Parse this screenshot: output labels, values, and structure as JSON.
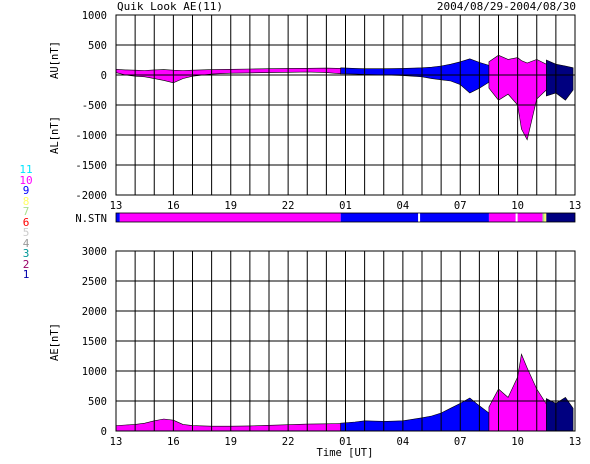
{
  "header": {
    "title": "Quik Look AE(11)",
    "date_range": "2004/08/29-2004/08/30"
  },
  "station_legend": {
    "items": [
      {
        "label": "11",
        "color": "#00e5ff"
      },
      {
        "label": "10",
        "color": "#ff00ff"
      },
      {
        "label": "9",
        "color": "#0000ff"
      },
      {
        "label": "8",
        "color": "#ffff66"
      },
      {
        "label": "7",
        "color": "#a6e08c"
      },
      {
        "label": "6",
        "color": "#ff0000"
      },
      {
        "label": "5",
        "color": "#cccccc"
      },
      {
        "label": "4",
        "color": "#999999"
      },
      {
        "label": "3",
        "color": "#009999"
      },
      {
        "label": "2",
        "color": "#990066"
      },
      {
        "label": "1",
        "color": "#0000aa"
      }
    ]
  },
  "chart_data": [
    {
      "type": "area",
      "panel": "upper",
      "ylabel_top": "AU[nT]",
      "ylabel_bottom": "AL[nT]",
      "ylim": [
        -2000,
        1000
      ],
      "yticks": [
        1000,
        500,
        0,
        -500,
        -1000,
        -1500,
        -2000
      ],
      "x_ticklabels": [
        "13",
        "16",
        "19",
        "22",
        "01",
        "04",
        "07",
        "10",
        "13"
      ],
      "x_tick_hours": [
        0,
        3,
        6,
        9,
        12,
        15,
        18,
        21,
        24
      ],
      "grid": true,
      "series": [
        {
          "color_key": "magenta",
          "x_hours": [
            0,
            0.5,
            1,
            1.5,
            2,
            2.5,
            3,
            3.5,
            4,
            5,
            6,
            7,
            8,
            9,
            10,
            11,
            11.75
          ],
          "au": [
            95,
            85,
            80,
            75,
            85,
            90,
            80,
            75,
            80,
            90,
            95,
            100,
            105,
            110,
            112,
            115,
            110
          ],
          "al": [
            40,
            0,
            -20,
            -30,
            -60,
            -90,
            -130,
            -60,
            -20,
            15,
            30,
            35,
            40,
            45,
            50,
            40,
            20
          ]
        },
        {
          "color_key": "blue",
          "x_hours": [
            11.75,
            12.5,
            13,
            14,
            15,
            16,
            16.5,
            17,
            17.5,
            18,
            18.5,
            19,
            19.5
          ],
          "au": [
            120,
            110,
            105,
            105,
            110,
            120,
            130,
            150,
            180,
            220,
            270,
            210,
            160
          ],
          "al": [
            20,
            15,
            10,
            0,
            -10,
            -30,
            -60,
            -80,
            -100,
            -160,
            -300,
            -220,
            -120
          ]
        },
        {
          "color_key": "magenta",
          "x_hours": [
            19.5,
            20,
            20.5,
            21,
            21.2,
            21.5,
            22,
            22.5
          ],
          "au": [
            220,
            330,
            260,
            290,
            240,
            200,
            260,
            180
          ],
          "al": [
            -220,
            -420,
            -320,
            -500,
            -900,
            -1080,
            -400,
            -250
          ]
        },
        {
          "color_key": "navy",
          "x_hours": [
            22.5,
            23,
            23.5,
            23.9
          ],
          "au": [
            250,
            180,
            150,
            120
          ],
          "al": [
            -350,
            -300,
            -420,
            -250
          ]
        }
      ]
    },
    {
      "type": "area",
      "panel": "lower",
      "ylabel": "AE[nT]",
      "xlabel": "Time [UT]",
      "ylim": [
        0,
        3000
      ],
      "yticks": [
        3000,
        2500,
        2000,
        1500,
        1000,
        500,
        0
      ],
      "x_ticklabels": [
        "13",
        "16",
        "19",
        "22",
        "01",
        "04",
        "07",
        "10",
        "13"
      ],
      "x_tick_hours": [
        0,
        3,
        6,
        9,
        12,
        15,
        18,
        21,
        24
      ],
      "grid": true,
      "series": [
        {
          "color_key": "magenta",
          "x_hours": [
            0,
            0.5,
            1,
            1.5,
            2,
            2.5,
            3,
            3.5,
            4,
            5,
            6,
            7,
            8,
            9,
            10,
            11,
            11.75
          ],
          "ae": [
            90,
            100,
            110,
            130,
            170,
            200,
            180,
            110,
            90,
            80,
            80,
            85,
            95,
            105,
            115,
            120,
            125
          ]
        },
        {
          "color_key": "blue",
          "x_hours": [
            11.75,
            12.5,
            13,
            14,
            15,
            16,
            16.5,
            17,
            17.5,
            18,
            18.5,
            19,
            19.5
          ],
          "ae": [
            130,
            150,
            170,
            160,
            170,
            220,
            250,
            300,
            380,
            460,
            550,
            420,
            300
          ]
        },
        {
          "color_key": "magenta",
          "x_hours": [
            19.5,
            20,
            20.5,
            21,
            21.2,
            21.5,
            22,
            22.5
          ],
          "ae": [
            400,
            700,
            560,
            900,
            1280,
            1050,
            700,
            450
          ]
        },
        {
          "color_key": "navy",
          "x_hours": [
            22.5,
            23,
            23.5,
            23.9
          ],
          "ae": [
            540,
            460,
            560,
            380
          ]
        }
      ]
    }
  ],
  "station_strip": {
    "label": "N.STN",
    "segments": [
      {
        "start_hour": 0,
        "end_hour": 0.2,
        "color": "#0000ff"
      },
      {
        "start_hour": 0.2,
        "end_hour": 11.75,
        "color": "#ff00ff"
      },
      {
        "start_hour": 11.75,
        "end_hour": 15.8,
        "color": "#0000ff"
      },
      {
        "start_hour": 15.8,
        "end_hour": 15.9,
        "color": "#ffffff"
      },
      {
        "start_hour": 15.9,
        "end_hour": 19.5,
        "color": "#0000ff"
      },
      {
        "start_hour": 19.5,
        "end_hour": 20.9,
        "color": "#ff00ff"
      },
      {
        "start_hour": 20.9,
        "end_hour": 21.0,
        "color": "#ffffff"
      },
      {
        "start_hour": 21.0,
        "end_hour": 22.3,
        "color": "#ff00ff"
      },
      {
        "start_hour": 22.3,
        "end_hour": 22.4,
        "color": "#a6e08c"
      },
      {
        "start_hour": 22.4,
        "end_hour": 22.5,
        "color": "#ffff66"
      },
      {
        "start_hour": 22.5,
        "end_hour": 24,
        "color": "#000080"
      }
    ]
  },
  "colors": {
    "magenta": "#ff00ff",
    "blue": "#0000ff",
    "navy": "#000080",
    "grid": "#000000"
  }
}
